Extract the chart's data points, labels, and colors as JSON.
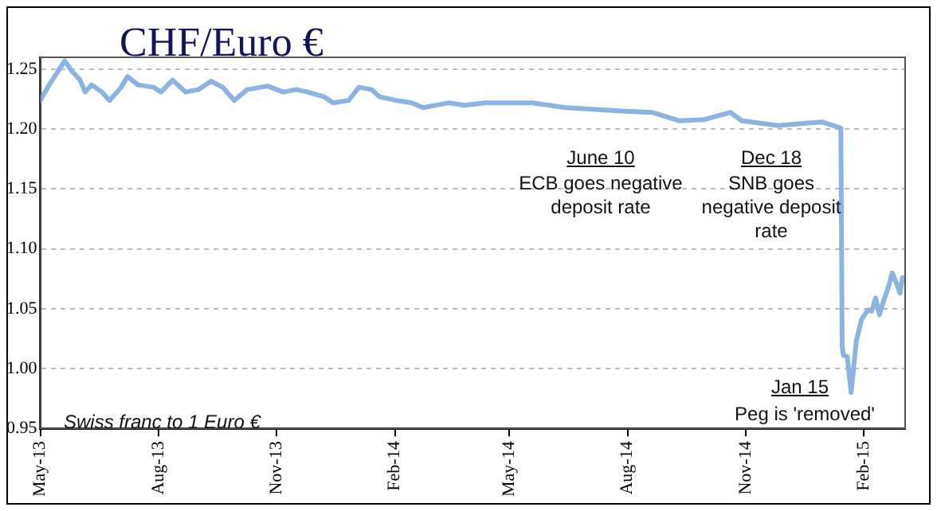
{
  "chart_data": {
    "type": "line",
    "title": "CHF/Euro €",
    "annotations": [
      "June 10",
      "ECB goes negative deposit rate",
      "Dec 18",
      "SNB goes negative deposit rate",
      "Jan 15",
      "Peg is 'removed'",
      "Swiss franc to 1 Euro €"
    ],
    "xlim": [
      "2013-05-01",
      "2015-03-05"
    ],
    "xticks": [
      {
        "value": "2013-05-01",
        "label": "May-13"
      },
      {
        "value": "2013-08-01",
        "label": "Aug-13"
      },
      {
        "value": "2013-11-01",
        "label": "Nov-13"
      },
      {
        "value": "2014-02-01",
        "label": "Feb-14"
      },
      {
        "value": "2014-05-01",
        "label": "May-14"
      },
      {
        "value": "2014-08-01",
        "label": "Aug-14"
      },
      {
        "value": "2014-11-01",
        "label": "Nov-14"
      },
      {
        "value": "2015-02-01",
        "label": "Feb-15"
      }
    ],
    "ylim": [
      0.95,
      1.26
    ],
    "yticks": [
      {
        "value": 0.95,
        "label": "0.95"
      },
      {
        "value": 1.0,
        "label": "1.00"
      },
      {
        "value": 1.05,
        "label": "1.05"
      },
      {
        "value": 1.1,
        "label": "1.10"
      },
      {
        "value": 1.15,
        "label": "1.15"
      },
      {
        "value": 1.2,
        "label": "1.20"
      },
      {
        "value": 1.25,
        "label": "1.25"
      }
    ],
    "grid": "y",
    "legend": false,
    "marker": "none",
    "line_style": "solid",
    "x": [
      "2013-05-01",
      "2013-05-08",
      "2013-05-14",
      "2013-05-20",
      "2013-05-26",
      "2013-06-01",
      "2013-06-05",
      "2013-06-10",
      "2013-06-18",
      "2013-06-24",
      "2013-07-03",
      "2013-07-08",
      "2013-07-16",
      "2013-07-28",
      "2013-08-03",
      "2013-08-12",
      "2013-08-22",
      "2013-09-01",
      "2013-09-11",
      "2013-09-20",
      "2013-09-29",
      "2013-10-09",
      "2013-10-25",
      "2013-11-06",
      "2013-11-16",
      "2013-11-25",
      "2013-12-08",
      "2013-12-15",
      "2013-12-27",
      "2014-01-04",
      "2014-01-14",
      "2014-01-20",
      "2014-02-02",
      "2014-02-14",
      "2014-02-23",
      "2014-03-05",
      "2014-03-15",
      "2014-03-27",
      "2014-04-12",
      "2014-05-19",
      "2014-06-14",
      "2014-07-30",
      "2014-08-20",
      "2014-09-10",
      "2014-09-30",
      "2014-10-20",
      "2014-10-29",
      "2014-11-26",
      "2014-12-30",
      "2015-01-14",
      "2015-01-15",
      "2015-01-16",
      "2015-01-19",
      "2015-01-22",
      "2015-01-26",
      "2015-01-30",
      "2015-02-04",
      "2015-02-07",
      "2015-02-10",
      "2015-02-13",
      "2015-02-17",
      "2015-02-20",
      "2015-02-23",
      "2015-02-26",
      "2015-03-01",
      "2015-03-03"
    ],
    "series": [
      {
        "color": "#8db3e2",
        "values": [
          1.224,
          1.237,
          1.247,
          1.257,
          1.248,
          1.241,
          1.231,
          1.237,
          1.231,
          1.224,
          1.235,
          1.244,
          1.237,
          1.235,
          1.231,
          1.241,
          1.231,
          1.233,
          1.24,
          1.235,
          1.224,
          1.233,
          1.236,
          1.231,
          1.233,
          1.231,
          1.227,
          1.222,
          1.224,
          1.235,
          1.233,
          1.227,
          1.224,
          1.222,
          1.218,
          1.22,
          1.222,
          1.22,
          1.222,
          1.222,
          1.218,
          1.215,
          1.214,
          1.207,
          1.208,
          1.214,
          1.207,
          1.203,
          1.206,
          1.201,
          1.019,
          1.011,
          1.01,
          0.98,
          1.023,
          1.041,
          1.049,
          1.048,
          1.059,
          1.045,
          1.059,
          1.068,
          1.08,
          1.072,
          1.063,
          1.076
        ]
      }
    ]
  }
}
